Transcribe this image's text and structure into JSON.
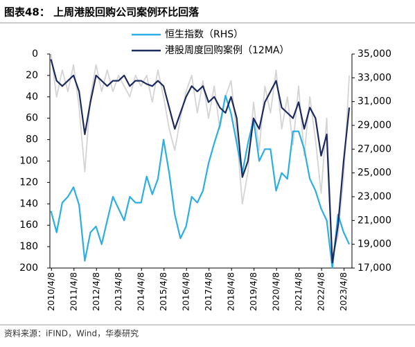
{
  "chart_data": {
    "type": "line",
    "title": "图表48：  上周港股回购公司案例环比回落",
    "source": "资料来源：iFIND，Wind，华泰研究",
    "x": [
      2010.25,
      2010.5,
      2010.75,
      2011.0,
      2011.25,
      2011.5,
      2011.75,
      2012.0,
      2012.25,
      2012.5,
      2012.75,
      2013.0,
      2013.25,
      2013.5,
      2013.75,
      2014.0,
      2014.25,
      2014.5,
      2014.75,
      2015.0,
      2015.25,
      2015.5,
      2015.75,
      2016.0,
      2016.25,
      2016.5,
      2016.75,
      2017.0,
      2017.25,
      2017.5,
      2017.75,
      2018.0,
      2018.25,
      2018.5,
      2018.75,
      2019.0,
      2019.25,
      2019.5,
      2019.75,
      2020.0,
      2020.25,
      2020.5,
      2020.75,
      2021.0,
      2021.25,
      2021.5,
      2021.75,
      2022.0,
      2022.25,
      2022.5,
      2022.75,
      2023.0,
      2023.25,
      2023.5
    ],
    "xlim": [
      2010.2,
      2023.62
    ],
    "xticks": [
      {
        "value": 2010.27,
        "label": "2010/4/8"
      },
      {
        "value": 2011.27,
        "label": "2011/4/8"
      },
      {
        "value": 2012.27,
        "label": "2012/4/8"
      },
      {
        "value": 2013.27,
        "label": "2013/4/8"
      },
      {
        "value": 2014.27,
        "label": "2014/4/8"
      },
      {
        "value": 2015.27,
        "label": "2015/4/8"
      },
      {
        "value": 2016.27,
        "label": "2016/4/8"
      },
      {
        "value": 2017.27,
        "label": "2017/4/8"
      },
      {
        "value": 2018.27,
        "label": "2018/4/8"
      },
      {
        "value": 2019.27,
        "label": "2019/4/8"
      },
      {
        "value": 2020.27,
        "label": "2020/4/8"
      },
      {
        "value": 2021.27,
        "label": "2021/4/8"
      },
      {
        "value": 2022.27,
        "label": "2022/4/8"
      },
      {
        "value": 2023.27,
        "label": "2023/4/8"
      }
    ],
    "ylim": [
      0,
      200
    ],
    "y_inverted": true,
    "yticks": [
      0,
      20,
      40,
      60,
      80,
      100,
      120,
      140,
      160,
      180,
      200
    ],
    "y2lim": [
      17000,
      35000
    ],
    "y2ticks": [
      {
        "value": 17000,
        "label": "17,000"
      },
      {
        "value": 19000,
        "label": "19,000"
      },
      {
        "value": 21000,
        "label": "21,000"
      },
      {
        "value": 23000,
        "label": "23,000"
      },
      {
        "value": 25000,
        "label": "25,000"
      },
      {
        "value": 27000,
        "label": "27,000"
      },
      {
        "value": 29000,
        "label": "29,000"
      },
      {
        "value": 31000,
        "label": "31,000"
      },
      {
        "value": 33000,
        "label": "33,000"
      },
      {
        "value": 35000,
        "label": "35,000"
      }
    ],
    "series": [
      {
        "color": "#d4d4d4",
        "values": [
          0,
          40,
          15,
          35,
          10,
          50,
          110,
          40,
          10,
          35,
          15,
          35,
          20,
          30,
          40,
          20,
          30,
          20,
          45,
          15,
          40,
          70,
          90,
          60,
          35,
          20,
          55,
          25,
          60,
          30,
          70,
          40,
          25,
          75,
          140,
          110,
          45,
          90,
          30,
          55,
          15,
          70,
          40,
          85,
          30,
          95,
          40,
          80,
          130,
          60,
          190,
          170,
          115,
          20
        ]
      },
      {
        "name": "恒生指数（RHS）",
        "color": "#2aaee3",
        "axis": "y2",
        "values": [
          21800,
          20000,
          22500,
          23000,
          23800,
          22300,
          17600,
          20000,
          20500,
          19000,
          21000,
          23000,
          22000,
          21000,
          23000,
          22500,
          22500,
          24700,
          23200,
          24500,
          27800,
          25000,
          21500,
          19500,
          20500,
          23000,
          22500,
          23500,
          25800,
          27500,
          29000,
          31500,
          30000,
          27500,
          25000,
          27500,
          29500,
          26000,
          27000,
          27000,
          23500,
          25000,
          24500,
          28500,
          28500,
          27000,
          24500,
          23500,
          22000,
          21000,
          17000,
          21500,
          20000,
          19000
        ]
      },
      {
        "name": "港股周度回购案例（12MA）",
        "color": "#1c2a5e",
        "values": [
          5,
          25,
          30,
          25,
          20,
          35,
          75,
          45,
          20,
          25,
          30,
          25,
          25,
          20,
          30,
          25,
          25,
          28,
          30,
          25,
          30,
          50,
          70,
          55,
          40,
          30,
          35,
          30,
          45,
          40,
          50,
          55,
          40,
          60,
          115,
          100,
          60,
          70,
          45,
          35,
          25,
          50,
          55,
          60,
          45,
          70,
          50,
          60,
          95,
          75,
          195,
          160,
          100,
          50
        ]
      }
    ]
  }
}
